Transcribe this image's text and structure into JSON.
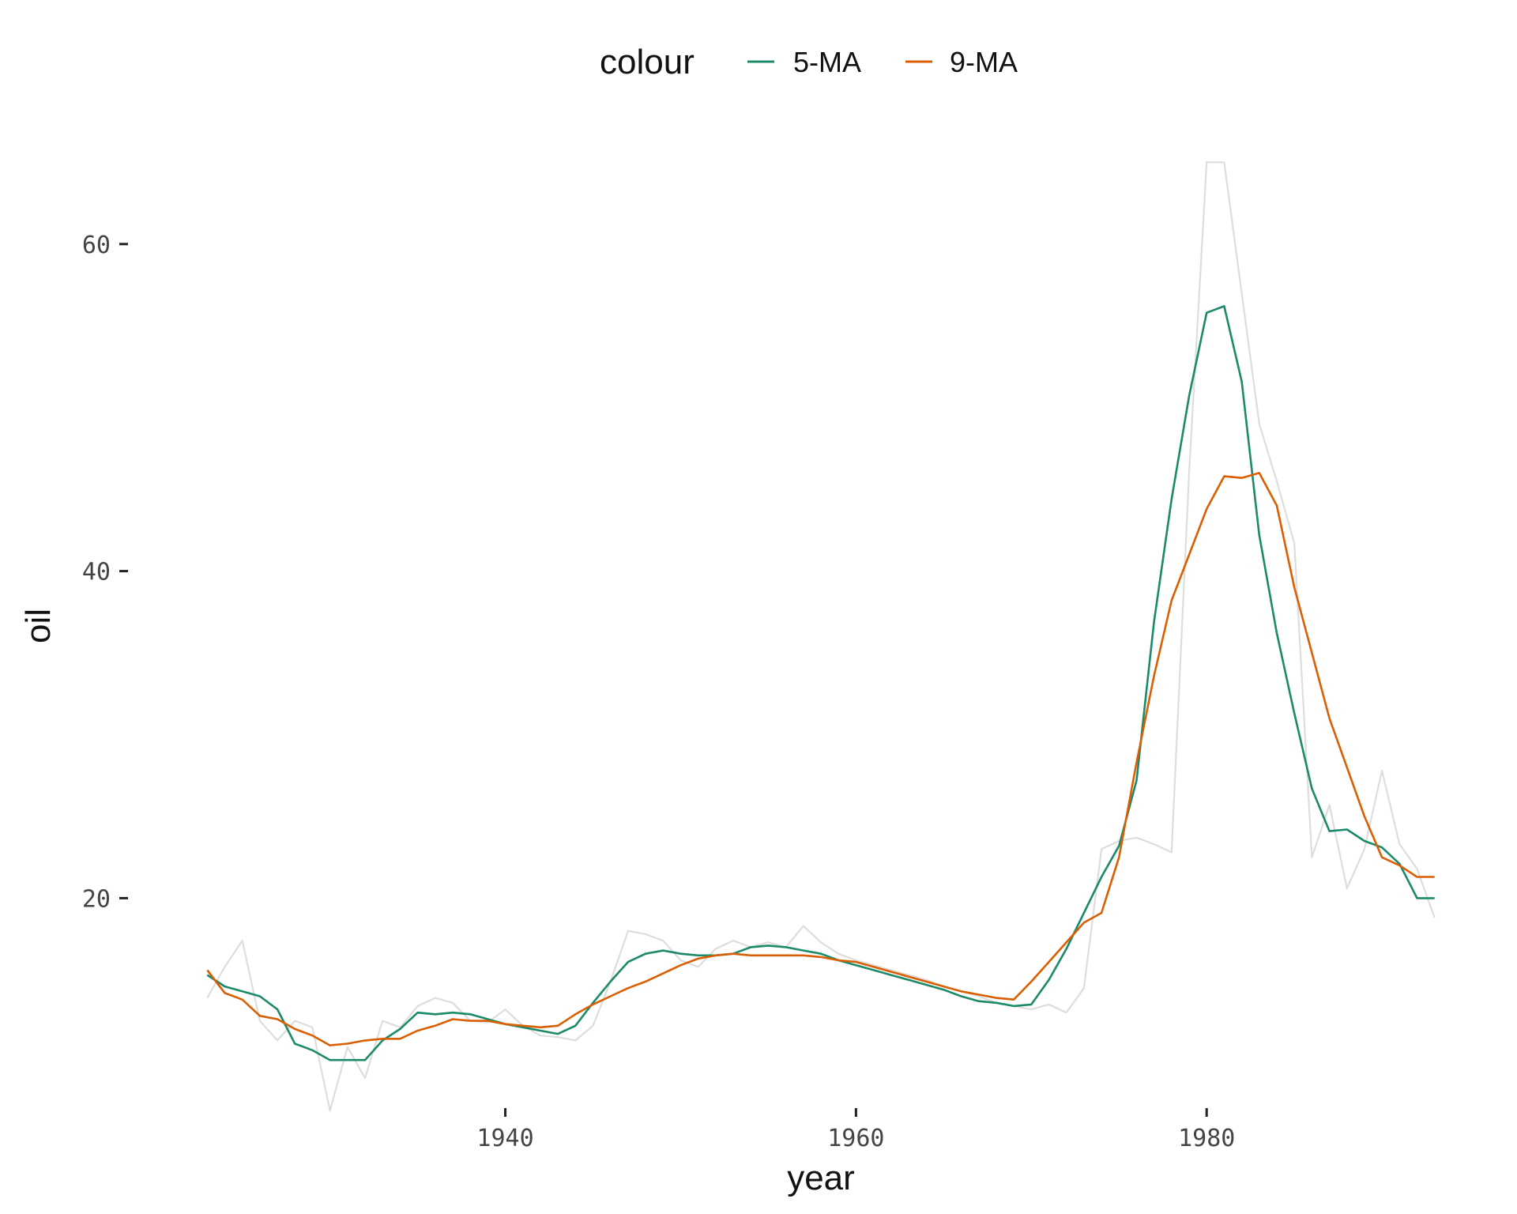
{
  "chart_data": {
    "type": "line",
    "title": "",
    "xlabel": "year",
    "ylabel": "oil",
    "xlim": [
      1921.5,
      1994.5
    ],
    "ylim": [
      7.5,
      65.5
    ],
    "x_ticks": [
      1940,
      1960,
      1980
    ],
    "y_ticks": [
      20,
      40,
      60
    ],
    "grid": false,
    "legend": {
      "title": "colour",
      "position": "top"
    },
    "raw_series": {
      "color": "#dddddd",
      "x": [
        1923,
        1924,
        1925,
        1926,
        1927,
        1928,
        1929,
        1930,
        1931,
        1932,
        1933,
        1934,
        1935,
        1936,
        1937,
        1938,
        1939,
        1940,
        1941,
        1942,
        1943,
        1944,
        1945,
        1946,
        1947,
        1948,
        1949,
        1950,
        1951,
        1952,
        1953,
        1954,
        1955,
        1956,
        1957,
        1958,
        1959,
        1960,
        1961,
        1962,
        1963,
        1964,
        1965,
        1966,
        1967,
        1968,
        1969,
        1970,
        1971,
        1972,
        1973,
        1974,
        1975,
        1976,
        1977,
        1978,
        1979,
        1980,
        1981,
        1982,
        1983,
        1984,
        1985,
        1986,
        1987,
        1988,
        1989,
        1990,
        1991,
        1992,
        1993
      ],
      "y": [
        13.9,
        15.8,
        17.4,
        12.5,
        11.3,
        12.5,
        12.1,
        7.0,
        10.9,
        9.0,
        12.5,
        12.1,
        13.4,
        13.9,
        13.6,
        12.5,
        12.4,
        13.2,
        12.2,
        11.6,
        11.5,
        11.3,
        12.2,
        14.9,
        18.0,
        17.8,
        17.4,
        16.2,
        15.8,
        16.9,
        17.4,
        17.0,
        17.3,
        17.0,
        18.3,
        17.3,
        16.6,
        16.2,
        15.9,
        15.6,
        15.3,
        15.0,
        14.6,
        14.3,
        14.0,
        13.6,
        13.4,
        13.2,
        13.5,
        13.0,
        14.5,
        23.0,
        23.5,
        23.7,
        23.3,
        22.8,
        46.0,
        65.0,
        65.0,
        57.0,
        49.0,
        45.5,
        41.7,
        22.5,
        25.7,
        20.6,
        23.0,
        27.8,
        23.3,
        21.8,
        18.8
      ]
    },
    "series": [
      {
        "name": "5-MA",
        "color": "#1b8a6b",
        "x": [
          1923,
          1924,
          1925,
          1926,
          1927,
          1928,
          1929,
          1930,
          1931,
          1932,
          1933,
          1934,
          1935,
          1936,
          1937,
          1938,
          1939,
          1940,
          1941,
          1942,
          1943,
          1944,
          1945,
          1946,
          1947,
          1948,
          1949,
          1950,
          1951,
          1952,
          1953,
          1954,
          1955,
          1956,
          1957,
          1958,
          1959,
          1960,
          1961,
          1962,
          1963,
          1964,
          1965,
          1966,
          1967,
          1968,
          1969,
          1970,
          1971,
          1972,
          1973,
          1974,
          1975,
          1976,
          1977,
          1978,
          1979,
          1980,
          1981,
          1982,
          1983,
          1984,
          1985,
          1986,
          1987,
          1988,
          1989,
          1990,
          1991,
          1992,
          1993
        ],
        "y": [
          15.3,
          14.6,
          14.3,
          14.0,
          13.2,
          11.1,
          10.7,
          10.1,
          10.1,
          10.1,
          11.3,
          12.0,
          13.0,
          12.9,
          13.0,
          12.9,
          12.6,
          12.3,
          12.1,
          11.9,
          11.7,
          12.2,
          13.6,
          14.9,
          16.1,
          16.6,
          16.8,
          16.6,
          16.5,
          16.5,
          16.6,
          17.0,
          17.1,
          17.0,
          16.8,
          16.6,
          16.2,
          15.9,
          15.6,
          15.3,
          15.0,
          14.7,
          14.4,
          14.0,
          13.7,
          13.6,
          13.4,
          13.5,
          15.0,
          16.9,
          19.1,
          21.3,
          23.2,
          27.2,
          36.9,
          44.4,
          50.7,
          55.8,
          56.2,
          51.6,
          42.2,
          36.2,
          31.3,
          26.7,
          24.1,
          24.2,
          23.5,
          23.1,
          22.1,
          20.0,
          20.0
        ]
      },
      {
        "name": "9-MA",
        "color": "#d95f02",
        "x": [
          1923,
          1924,
          1925,
          1926,
          1927,
          1928,
          1929,
          1930,
          1931,
          1932,
          1933,
          1934,
          1935,
          1936,
          1937,
          1938,
          1939,
          1940,
          1941,
          1942,
          1943,
          1944,
          1945,
          1946,
          1947,
          1948,
          1949,
          1950,
          1951,
          1952,
          1953,
          1954,
          1955,
          1956,
          1957,
          1958,
          1959,
          1960,
          1961,
          1962,
          1963,
          1964,
          1965,
          1966,
          1967,
          1968,
          1969,
          1970,
          1971,
          1972,
          1973,
          1974,
          1975,
          1976,
          1977,
          1978,
          1979,
          1980,
          1981,
          1982,
          1983,
          1984,
          1985,
          1986,
          1987,
          1988,
          1989,
          1990,
          1991,
          1992,
          1993
        ],
        "y": [
          15.6,
          14.2,
          13.8,
          12.8,
          12.6,
          12.0,
          11.6,
          11.0,
          11.1,
          11.3,
          11.4,
          11.4,
          11.9,
          12.2,
          12.6,
          12.5,
          12.5,
          12.3,
          12.2,
          12.1,
          12.2,
          12.9,
          13.5,
          14.0,
          14.5,
          14.9,
          15.4,
          15.9,
          16.3,
          16.5,
          16.6,
          16.5,
          16.5,
          16.5,
          16.5,
          16.4,
          16.2,
          16.1,
          15.8,
          15.5,
          15.2,
          14.9,
          14.6,
          14.3,
          14.1,
          13.9,
          13.8,
          14.9,
          16.1,
          17.3,
          18.5,
          19.1,
          22.5,
          28.3,
          33.6,
          38.2,
          41.0,
          43.8,
          45.8,
          45.7,
          46.0,
          44.0,
          39.0,
          35.0,
          31.0,
          28.0,
          25.0,
          22.5,
          22.0,
          21.3,
          21.3
        ]
      }
    ]
  }
}
